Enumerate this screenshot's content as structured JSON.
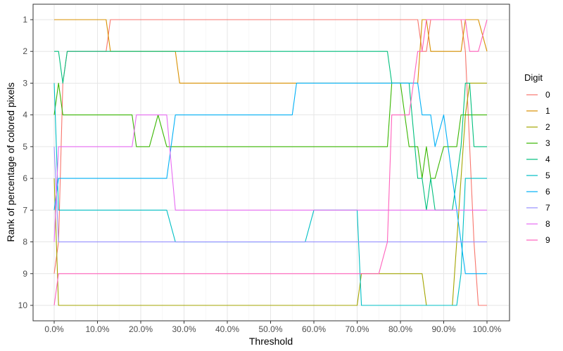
{
  "chart_data": {
    "type": "line",
    "title": "",
    "xlabel": "Threshold",
    "ylabel": "Rank of percentage of colored pixels",
    "xlim": [
      0,
      1
    ],
    "ylim": [
      1,
      10
    ],
    "y_reversed": true,
    "grid": true,
    "legend": {
      "title": "Digit",
      "placement": "right"
    },
    "x_ticks": [
      "0.0%",
      "10.0%",
      "20.0%",
      "30.0%",
      "40.0%",
      "50.0%",
      "60.0%",
      "70.0%",
      "80.0%",
      "90.0%",
      "100.0%"
    ],
    "y_ticks": [
      "1",
      "2",
      "3",
      "4",
      "5",
      "6",
      "7",
      "8",
      "9",
      "10"
    ],
    "x": [
      0.0,
      0.01,
      0.02,
      0.03,
      0.05,
      0.08,
      0.12,
      0.13,
      0.16,
      0.18,
      0.19,
      0.2,
      0.22,
      0.24,
      0.26,
      0.28,
      0.29,
      0.32,
      0.34,
      0.36,
      0.38,
      0.42,
      0.45,
      0.46,
      0.48,
      0.5,
      0.52,
      0.55,
      0.56,
      0.58,
      0.6,
      0.62,
      0.65,
      0.7,
      0.71,
      0.75,
      0.77,
      0.78,
      0.8,
      0.82,
      0.84,
      0.85,
      0.86,
      0.87,
      0.88,
      0.9,
      0.92,
      0.93,
      0.94,
      0.95,
      0.96,
      0.97,
      0.98,
      1.0
    ],
    "series": [
      {
        "name": "0",
        "color": "#F8766D",
        "values": [
          9,
          8,
          3,
          2,
          2,
          2,
          2,
          1,
          1,
          1,
          1,
          1,
          1,
          1,
          1,
          1,
          1,
          1,
          1,
          1,
          1,
          1,
          1,
          1,
          1,
          1,
          1,
          1,
          1,
          1,
          1,
          1,
          1,
          1,
          1,
          1,
          1,
          1,
          1,
          1,
          1,
          2,
          2,
          1,
          1,
          1,
          1,
          1,
          1,
          2,
          5,
          8,
          10,
          10
        ]
      },
      {
        "name": "1",
        "color": "#D89000",
        "values": [
          1,
          1,
          1,
          1,
          1,
          1,
          1,
          2,
          2,
          2,
          2,
          2,
          2,
          2,
          2,
          2,
          3,
          3,
          3,
          3,
          3,
          3,
          3,
          3,
          3,
          3,
          3,
          3,
          3,
          3,
          3,
          3,
          3,
          3,
          3,
          3,
          3,
          3,
          3,
          3,
          3,
          1,
          1,
          2,
          2,
          2,
          2,
          2,
          2,
          1,
          1,
          1,
          1,
          2
        ]
      },
      {
        "name": "2",
        "color": "#A3A500",
        "values": [
          6,
          10,
          10,
          10,
          10,
          10,
          10,
          10,
          10,
          10,
          10,
          10,
          10,
          10,
          10,
          10,
          10,
          10,
          10,
          10,
          10,
          10,
          10,
          10,
          10,
          10,
          10,
          10,
          10,
          10,
          10,
          10,
          10,
          10,
          9,
          9,
          9,
          9,
          9,
          9,
          9,
          9,
          10,
          10,
          10,
          10,
          10,
          8,
          6,
          4,
          3,
          3,
          3,
          3
        ]
      },
      {
        "name": "3",
        "color": "#39B600",
        "values": [
          4,
          3,
          4,
          4,
          4,
          4,
          4,
          4,
          4,
          4,
          5,
          5,
          5,
          4,
          5,
          5,
          5,
          5,
          5,
          5,
          5,
          5,
          5,
          5,
          5,
          5,
          5,
          5,
          5,
          5,
          5,
          5,
          5,
          5,
          5,
          5,
          5,
          3,
          3,
          5,
          5,
          6,
          5,
          6,
          6,
          5,
          5,
          5,
          4,
          4,
          4,
          4,
          4,
          4
        ]
      },
      {
        "name": "4",
        "color": "#00BF7D",
        "values": [
          2,
          2,
          3,
          2,
          2,
          2,
          2,
          2,
          2,
          2,
          2,
          2,
          2,
          2,
          2,
          2,
          2,
          2,
          2,
          2,
          2,
          2,
          2,
          2,
          2,
          2,
          2,
          2,
          2,
          2,
          2,
          2,
          2,
          2,
          2,
          2,
          2,
          3,
          3,
          3,
          6,
          6,
          7,
          6,
          7,
          7,
          7,
          6,
          5,
          3,
          3,
          5,
          5,
          5
        ]
      },
      {
        "name": "5",
        "color": "#00BFC4",
        "values": [
          3,
          7,
          7,
          7,
          7,
          7,
          7,
          7,
          7,
          7,
          7,
          7,
          7,
          7,
          7,
          8,
          8,
          8,
          8,
          8,
          8,
          8,
          8,
          8,
          8,
          8,
          8,
          8,
          8,
          8,
          7,
          7,
          7,
          7,
          10,
          10,
          10,
          10,
          10,
          10,
          10,
          10,
          10,
          10,
          10,
          10,
          10,
          10,
          9,
          6,
          6,
          6,
          6,
          6
        ]
      },
      {
        "name": "6",
        "color": "#00B0F6",
        "values": [
          7,
          6,
          6,
          6,
          6,
          6,
          6,
          6,
          6,
          6,
          6,
          6,
          6,
          6,
          6,
          4,
          4,
          4,
          4,
          4,
          4,
          4,
          4,
          4,
          4,
          4,
          4,
          4,
          3,
          3,
          3,
          3,
          3,
          3,
          3,
          3,
          3,
          3,
          3,
          3,
          3,
          4,
          4,
          4,
          5,
          4,
          6,
          7,
          8,
          9,
          9,
          9,
          9,
          9
        ]
      },
      {
        "name": "7",
        "color": "#9590FF",
        "values": [
          5,
          8,
          8,
          8,
          8,
          8,
          8,
          8,
          8,
          8,
          8,
          8,
          8,
          8,
          8,
          8,
          8,
          8,
          8,
          8,
          8,
          8,
          8,
          8,
          8,
          8,
          8,
          8,
          8,
          8,
          8,
          8,
          8,
          8,
          8,
          8,
          8,
          8,
          8,
          8,
          8,
          8,
          8,
          8,
          8,
          8,
          8,
          8,
          8,
          8,
          8,
          8,
          8,
          8
        ]
      },
      {
        "name": "8",
        "color": "#E76BF3",
        "values": [
          8,
          5,
          5,
          5,
          5,
          5,
          5,
          5,
          5,
          5,
          4,
          4,
          4,
          4,
          4,
          7,
          7,
          7,
          7,
          7,
          7,
          7,
          7,
          7,
          7,
          7,
          7,
          7,
          7,
          7,
          7,
          7,
          7,
          7,
          7,
          7,
          7,
          7,
          7,
          7,
          7,
          7,
          7,
          7,
          7,
          7,
          7,
          7,
          7,
          7,
          7,
          7,
          7,
          7
        ]
      },
      {
        "name": "9",
        "color": "#FF62BC",
        "values": [
          10,
          9,
          9,
          9,
          9,
          9,
          9,
          9,
          9,
          9,
          9,
          9,
          9,
          9,
          9,
          9,
          9,
          9,
          9,
          9,
          9,
          9,
          9,
          9,
          9,
          9,
          9,
          9,
          9,
          9,
          9,
          9,
          9,
          9,
          9,
          9,
          8,
          4,
          4,
          4,
          2,
          2,
          1,
          1,
          1,
          1,
          1,
          1,
          1,
          1,
          2,
          2,
          2,
          1
        ]
      }
    ]
  }
}
